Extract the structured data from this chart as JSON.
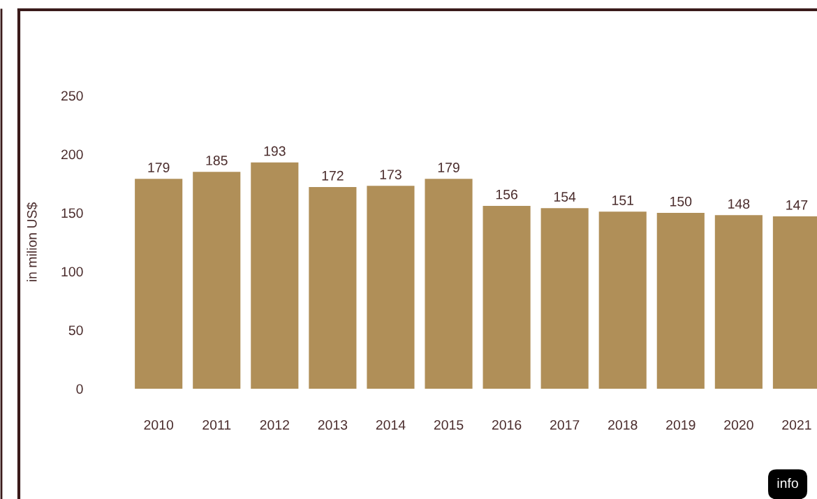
{
  "chart_data": {
    "type": "bar",
    "categories": [
      "2010",
      "2011",
      "2012",
      "2013",
      "2014",
      "2015",
      "2016",
      "2017",
      "2018",
      "2019",
      "2020",
      "2021"
    ],
    "values": [
      179,
      185,
      193,
      172,
      173,
      179,
      156,
      154,
      151,
      150,
      148,
      147
    ],
    "color": "#b08f58",
    "ylabel": "in milion US$",
    "ylim": [
      0,
      250
    ],
    "yticks": [
      0,
      50,
      100,
      150,
      200,
      250
    ],
    "data_labels": true,
    "annotations": [
      "info"
    ]
  }
}
